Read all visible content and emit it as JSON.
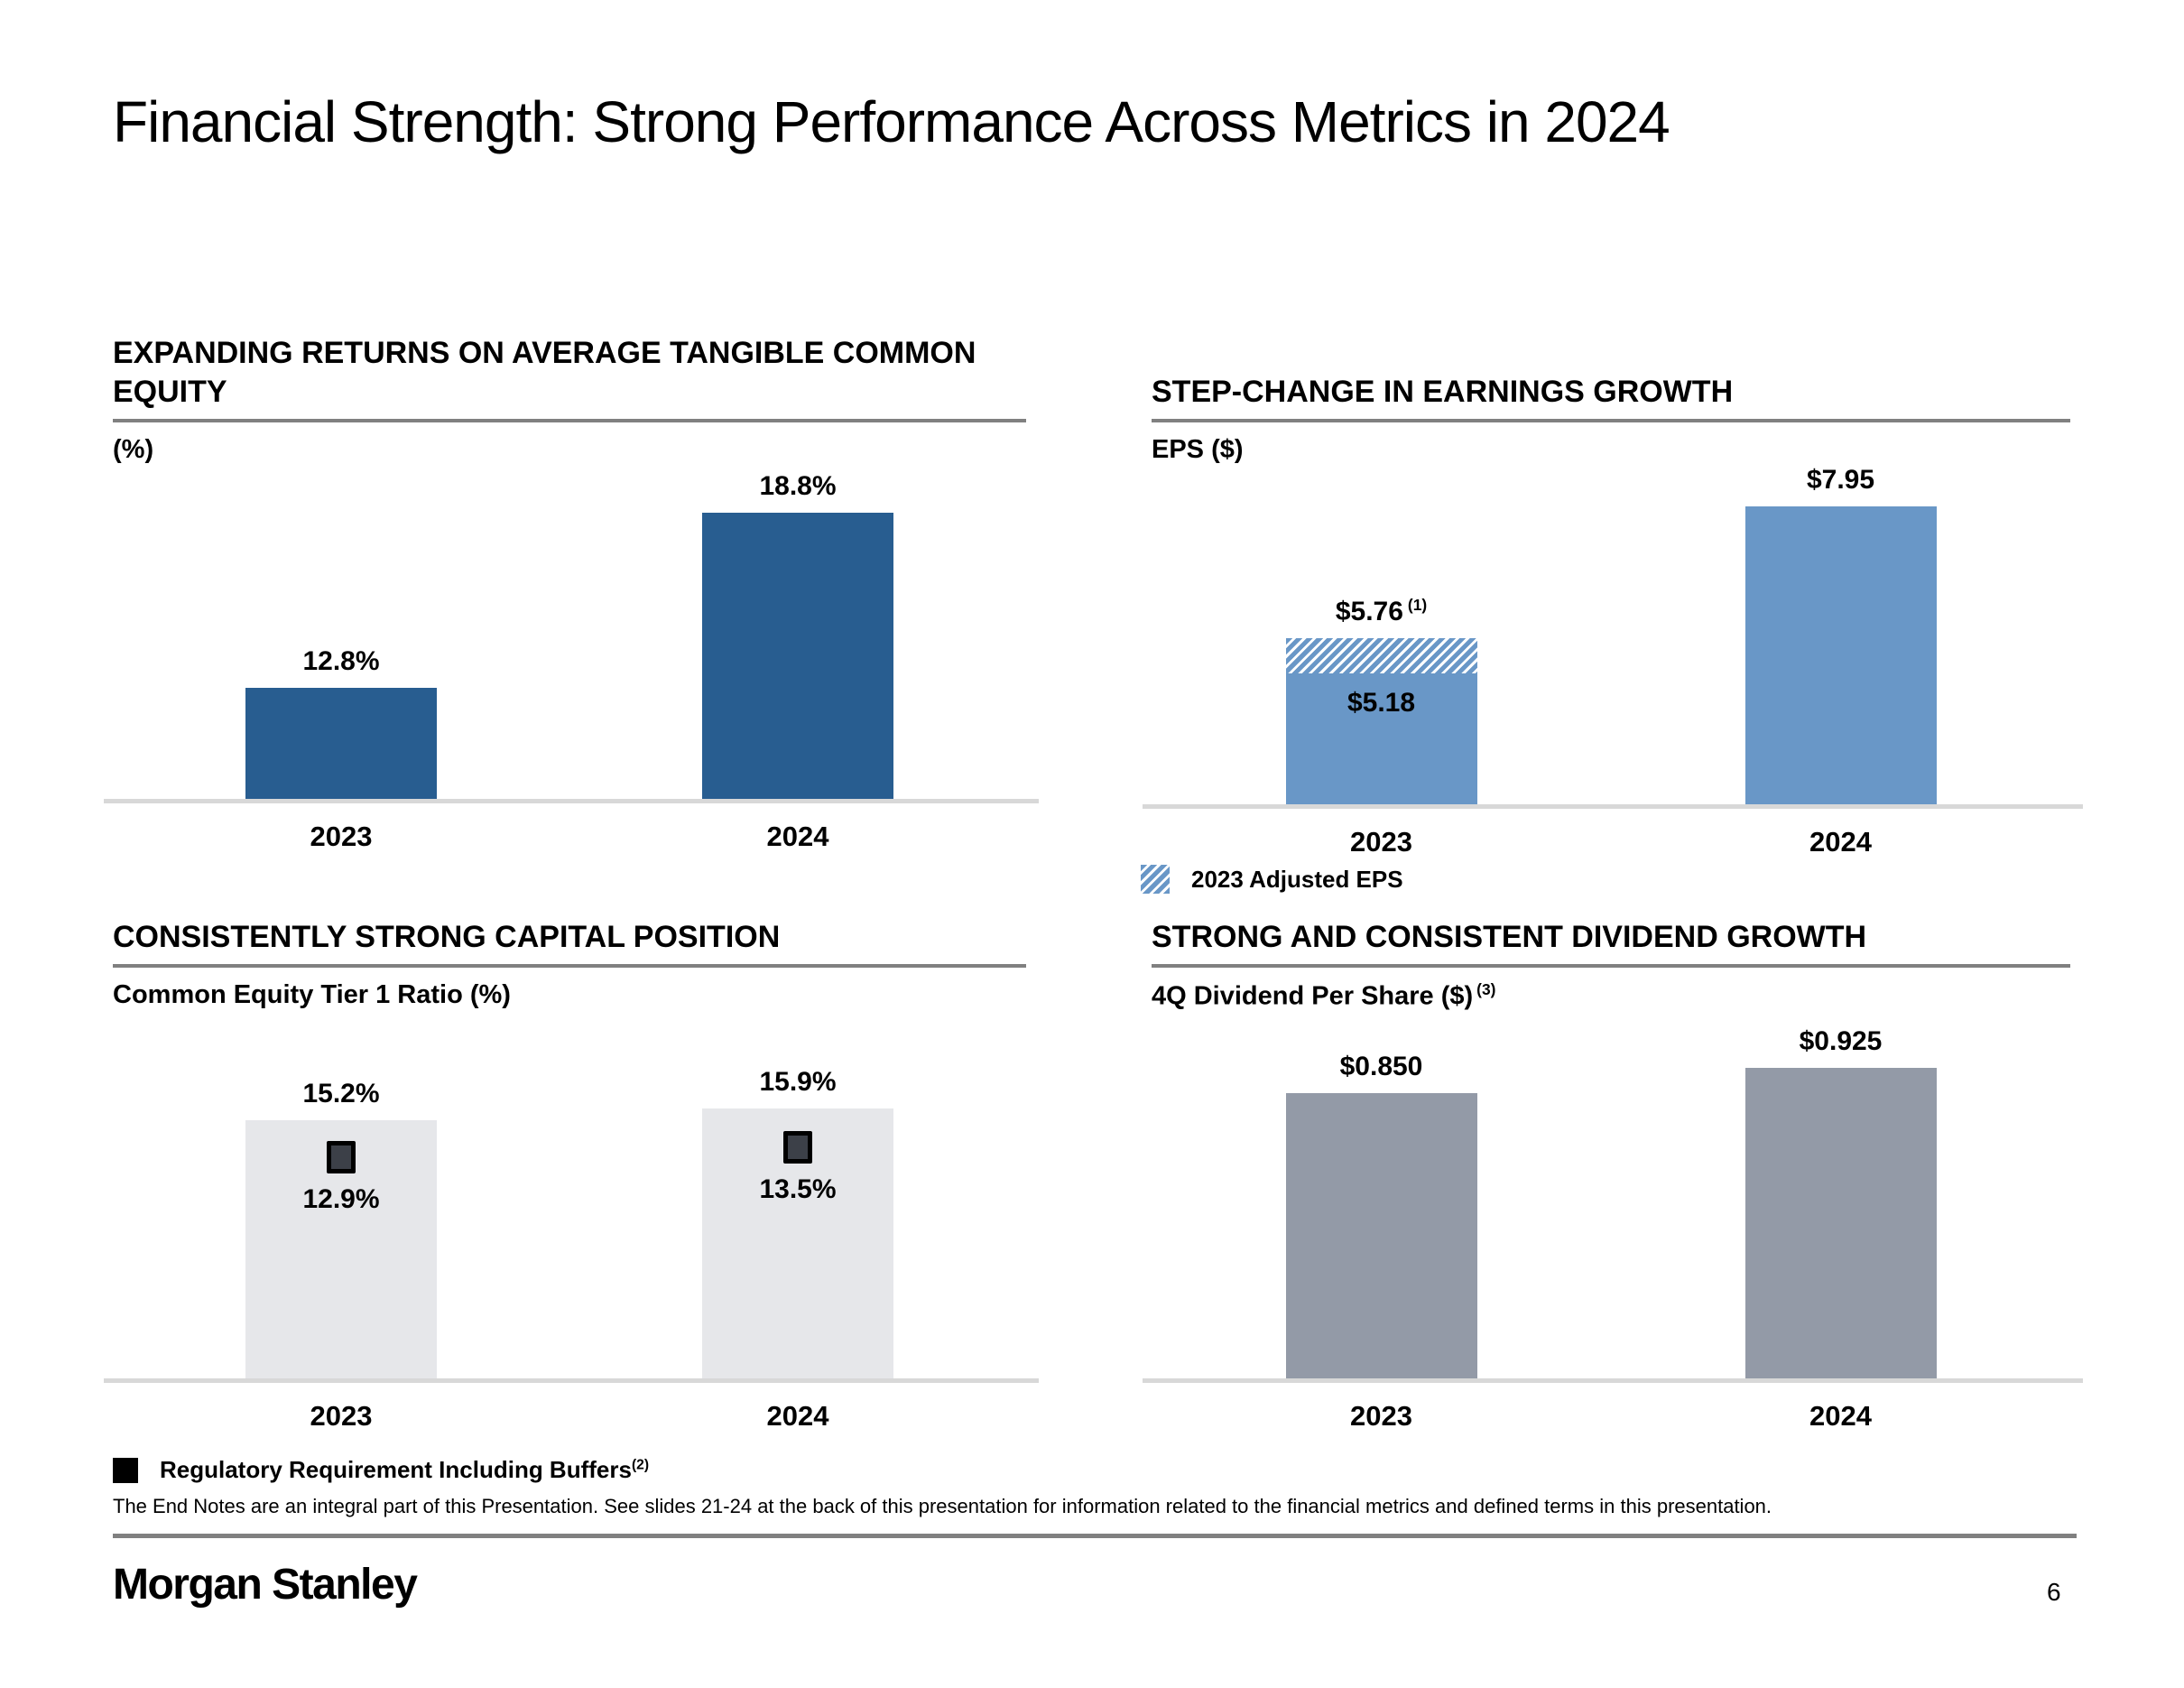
{
  "page": {
    "title": "Financial Strength: Strong Performance Across Metrics in 2024",
    "footnote": "The End Notes are an integral part of this Presentation. See slides 21-24 at the back of this presentation for information related to the financial metrics and defined terms in this presentation.",
    "logo": "Morgan Stanley",
    "page_number": "6"
  },
  "colors": {
    "dark_blue": "#285D90",
    "light_blue": "#6997C7",
    "light_gray_bar": "#E6E7EA",
    "mid_gray_bar": "#939AA7",
    "marker_dark": "#3C4048",
    "header_rule_gray": "#808080",
    "baseline_gray": "#D8D8D8"
  },
  "chart_data": [
    {
      "id": "rotce",
      "type": "bar",
      "title": "EXPANDING RETURNS ON AVERAGE TANGIBLE COMMON EQUITY",
      "unit_label": "(%)",
      "categories": [
        "2023",
        "2024"
      ],
      "values": [
        12.8,
        18.8
      ],
      "value_labels": [
        "12.8%",
        "18.8%"
      ],
      "ylim": [
        9,
        19.5
      ],
      "grid": false,
      "bar_color_key": "dark_blue"
    },
    {
      "id": "eps",
      "type": "bar",
      "title": "STEP-CHANGE IN EARNINGS GROWTH",
      "unit_label": "EPS ($)",
      "categories": [
        "2023",
        "2024"
      ],
      "values": [
        5.18,
        7.95
      ],
      "value_labels": [
        "$5.18",
        "$7.95"
      ],
      "adjusted": {
        "category": "2023",
        "value": 5.76,
        "label": "$5.76",
        "superscript": "(1)"
      },
      "legend": {
        "label": "2023 Adjusted EPS"
      },
      "ylim": [
        3,
        8.1
      ],
      "grid": false,
      "bar_color_key": "light_blue"
    },
    {
      "id": "cet1",
      "type": "bar",
      "title": "CONSISTENTLY STRONG CAPITAL POSITION",
      "unit_label": "Common Equity Tier 1 Ratio (%)",
      "categories": [
        "2023",
        "2024"
      ],
      "values": [
        15.2,
        15.9
      ],
      "value_labels": [
        "15.2%",
        "15.9%"
      ],
      "markers": {
        "values": [
          12.9,
          13.5
        ],
        "labels": [
          "12.9%",
          "13.5%"
        ]
      },
      "legend": {
        "label": "Regulatory Requirement Including Buffers",
        "superscript": "(2)"
      },
      "ylim": [
        0,
        18.6
      ],
      "grid": false,
      "bar_color_key": "light_gray_bar"
    },
    {
      "id": "dividend",
      "type": "bar",
      "title": "STRONG AND CONSISTENT DIVIDEND GROWTH",
      "unit_label": "4Q Dividend Per Share ($)",
      "unit_superscript": "(3)",
      "categories": [
        "2023",
        "2024"
      ],
      "values": [
        0.85,
        0.925
      ],
      "value_labels": [
        "$0.850",
        "$0.925"
      ],
      "ylim": [
        0,
        0.94
      ],
      "grid": false,
      "bar_color_key": "mid_gray_bar"
    }
  ]
}
